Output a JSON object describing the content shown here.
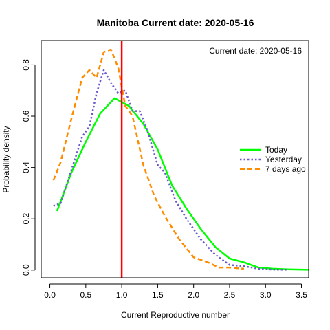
{
  "chart_data": {
    "type": "line",
    "title": "Manitoba   Current date:  2020-05-16",
    "annotation": "Current date:  2020-05-16",
    "xlabel": "Current Reproductive number",
    "ylabel": "Probability density",
    "xlim": [
      -0.12,
      3.6
    ],
    "ylim": [
      -0.03,
      0.895
    ],
    "x_ticks": [
      0.0,
      0.5,
      1.0,
      1.5,
      2.0,
      2.5,
      3.0,
      3.5
    ],
    "x_tick_labels": [
      "0.0",
      "0.5",
      "1.0",
      "1.5",
      "2.0",
      "2.5",
      "3.0",
      "3.5"
    ],
    "y_ticks": [
      0.0,
      0.2,
      0.4,
      0.6,
      0.8
    ],
    "y_tick_labels": [
      "0.0",
      "0.2",
      "0.4",
      "0.6",
      "0.8"
    ],
    "vline": {
      "x": 1.0,
      "color": "#ff0000"
    },
    "legend_position": "right",
    "series": [
      {
        "name": "Today",
        "color": "#00ff00",
        "dash": "solid",
        "x": [
          0.1,
          0.3,
          0.5,
          0.7,
          0.9,
          1.1,
          1.3,
          1.5,
          1.7,
          1.9,
          2.1,
          2.3,
          2.5,
          2.7,
          2.9,
          3.1,
          3.3,
          3.6
        ],
        "y": [
          0.23,
          0.38,
          0.5,
          0.61,
          0.67,
          0.64,
          0.57,
          0.47,
          0.33,
          0.24,
          0.16,
          0.09,
          0.045,
          0.03,
          0.01,
          0.005,
          0.003,
          0.001
        ]
      },
      {
        "name": "Yesterday",
        "color": "#6a5acd",
        "dash": "dotted",
        "x": [
          0.05,
          0.15,
          0.3,
          0.45,
          0.55,
          0.65,
          0.75,
          0.85,
          0.95,
          1.05,
          1.15,
          1.25,
          1.35,
          1.5,
          1.6,
          1.75,
          1.9,
          2.1,
          2.3,
          2.5,
          2.7,
          2.9,
          3.1,
          3.3
        ],
        "y": [
          0.25,
          0.26,
          0.39,
          0.52,
          0.56,
          0.69,
          0.78,
          0.73,
          0.69,
          0.7,
          0.62,
          0.62,
          0.55,
          0.41,
          0.38,
          0.27,
          0.2,
          0.12,
          0.06,
          0.02,
          0.015,
          0.005,
          0.002,
          0.001
        ]
      },
      {
        "name": "7 days ago",
        "color": "#ff8c00",
        "dash": "dashed",
        "x": [
          0.05,
          0.15,
          0.3,
          0.45,
          0.55,
          0.65,
          0.75,
          0.85,
          0.95,
          1.05,
          1.15,
          1.3,
          1.45,
          1.6,
          1.8,
          2.0,
          2.2,
          2.35,
          2.5,
          2.7
        ],
        "y": [
          0.35,
          0.42,
          0.59,
          0.75,
          0.78,
          0.75,
          0.85,
          0.86,
          0.79,
          0.64,
          0.6,
          0.41,
          0.29,
          0.21,
          0.12,
          0.05,
          0.03,
          0.01,
          0.01,
          0.005
        ]
      }
    ]
  }
}
